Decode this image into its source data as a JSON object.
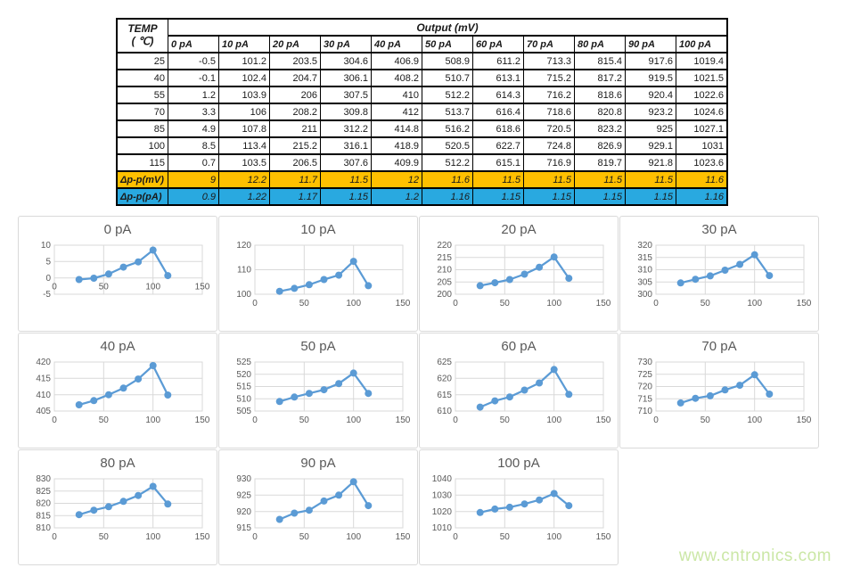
{
  "table": {
    "temp_header_line1": "TEMP",
    "temp_header_line2": "( ℃)",
    "output_header": "Output (mV)",
    "col_headers": [
      "0 pA",
      "10 pA",
      "20 pA",
      "30 pA",
      "40 pA",
      "50 pA",
      "60 pA",
      "70 pA",
      "80 pA",
      "90 pA",
      "100 pA"
    ],
    "rows": [
      {
        "temp": "25",
        "values": [
          "-0.5",
          "101.2",
          "203.5",
          "304.6",
          "406.9",
          "508.9",
          "611.2",
          "713.3",
          "815.4",
          "917.6",
          "1019.4"
        ]
      },
      {
        "temp": "40",
        "values": [
          "-0.1",
          "102.4",
          "204.7",
          "306.1",
          "408.2",
          "510.7",
          "613.1",
          "715.2",
          "817.2",
          "919.5",
          "1021.5"
        ]
      },
      {
        "temp": "55",
        "values": [
          "1.2",
          "103.9",
          "206",
          "307.5",
          "410",
          "512.2",
          "614.3",
          "716.2",
          "818.6",
          "920.4",
          "1022.6"
        ]
      },
      {
        "temp": "70",
        "values": [
          "3.3",
          "106",
          "208.2",
          "309.8",
          "412",
          "513.7",
          "616.4",
          "718.6",
          "820.8",
          "923.2",
          "1024.6"
        ]
      },
      {
        "temp": "85",
        "values": [
          "4.9",
          "107.8",
          "211",
          "312.2",
          "414.8",
          "516.2",
          "618.6",
          "720.5",
          "823.2",
          "925",
          "1027.1"
        ]
      },
      {
        "temp": "100",
        "values": [
          "8.5",
          "113.4",
          "215.2",
          "316.1",
          "418.9",
          "520.5",
          "622.7",
          "724.8",
          "826.9",
          "929.1",
          "1031"
        ]
      },
      {
        "temp": "115",
        "values": [
          "0.7",
          "103.5",
          "206.5",
          "307.6",
          "409.9",
          "512.2",
          "615.1",
          "716.9",
          "819.7",
          "921.8",
          "1023.6"
        ]
      }
    ],
    "delta_mv": {
      "label": "Δp-p(mV)",
      "color": "#FFC000",
      "values": [
        "9",
        "12.2",
        "11.7",
        "11.5",
        "12",
        "11.6",
        "11.5",
        "11.5",
        "11.5",
        "11.5",
        "11.6"
      ]
    },
    "delta_pa": {
      "label": "Δp-p(pA)",
      "color": "#29A9E0",
      "values": [
        "0.9",
        "1.22",
        "1.17",
        "1.15",
        "1.2",
        "1.16",
        "1.15",
        "1.15",
        "1.15",
        "1.15",
        "1.16"
      ]
    }
  },
  "chart_style": {
    "line_color": "#5B9BD5",
    "grid_color": "#D9D9D9",
    "text_color": "#595959"
  },
  "chart_data": [
    {
      "type": "line",
      "title": "0 pA",
      "x": [
        25,
        40,
        55,
        70,
        85,
        100,
        115
      ],
      "y": [
        -0.5,
        -0.1,
        1.2,
        3.3,
        4.9,
        8.5,
        0.7
      ],
      "xlim": [
        0,
        150
      ],
      "xticks": [
        0,
        50,
        100,
        150
      ],
      "ylim": [
        -5,
        10
      ],
      "yticks": [
        -5,
        0,
        5,
        10
      ],
      "grid": true,
      "legend": false
    },
    {
      "type": "line",
      "title": "10 pA",
      "x": [
        25,
        40,
        55,
        70,
        85,
        100,
        115
      ],
      "y": [
        101.2,
        102.4,
        103.9,
        106,
        107.8,
        113.4,
        103.5
      ],
      "xlim": [
        0,
        150
      ],
      "xticks": [
        0,
        50,
        100,
        150
      ],
      "ylim": [
        100,
        120
      ],
      "yticks": [
        100,
        110,
        120
      ],
      "grid": true,
      "legend": false
    },
    {
      "type": "line",
      "title": "20 pA",
      "x": [
        25,
        40,
        55,
        70,
        85,
        100,
        115
      ],
      "y": [
        203.5,
        204.7,
        206,
        208.2,
        211,
        215.2,
        206.5
      ],
      "xlim": [
        0,
        150
      ],
      "xticks": [
        0,
        50,
        100,
        150
      ],
      "ylim": [
        200,
        220
      ],
      "yticks": [
        200,
        205,
        210,
        215,
        220
      ],
      "grid": true,
      "legend": false
    },
    {
      "type": "line",
      "title": "30 pA",
      "x": [
        25,
        40,
        55,
        70,
        85,
        100,
        115
      ],
      "y": [
        304.6,
        306.1,
        307.5,
        309.8,
        312.2,
        316.1,
        307.6
      ],
      "xlim": [
        0,
        150
      ],
      "xticks": [
        0,
        50,
        100,
        150
      ],
      "ylim": [
        300,
        320
      ],
      "yticks": [
        300,
        305,
        310,
        315,
        320
      ],
      "grid": true,
      "legend": false
    },
    {
      "type": "line",
      "title": "40 pA",
      "x": [
        25,
        40,
        55,
        70,
        85,
        100,
        115
      ],
      "y": [
        406.9,
        408.2,
        410,
        412,
        414.8,
        418.9,
        409.9
      ],
      "xlim": [
        0,
        150
      ],
      "xticks": [
        0,
        50,
        100,
        150
      ],
      "ylim": [
        405,
        420
      ],
      "yticks": [
        405,
        410,
        415,
        420
      ],
      "grid": true,
      "legend": false
    },
    {
      "type": "line",
      "title": "50 pA",
      "x": [
        25,
        40,
        55,
        70,
        85,
        100,
        115
      ],
      "y": [
        508.9,
        510.7,
        512.2,
        513.7,
        516.2,
        520.5,
        512.2
      ],
      "xlim": [
        0,
        150
      ],
      "xticks": [
        0,
        50,
        100,
        150
      ],
      "ylim": [
        505,
        525
      ],
      "yticks": [
        505,
        510,
        515,
        520,
        525
      ],
      "grid": true,
      "legend": false
    },
    {
      "type": "line",
      "title": "60 pA",
      "x": [
        25,
        40,
        55,
        70,
        85,
        100,
        115
      ],
      "y": [
        611.2,
        613.1,
        614.3,
        616.4,
        618.6,
        622.7,
        615.1
      ],
      "xlim": [
        0,
        150
      ],
      "xticks": [
        0,
        50,
        100,
        150
      ],
      "ylim": [
        610,
        625
      ],
      "yticks": [
        610,
        615,
        620,
        625
      ],
      "grid": true,
      "legend": false
    },
    {
      "type": "line",
      "title": "70 pA",
      "x": [
        25,
        40,
        55,
        70,
        85,
        100,
        115
      ],
      "y": [
        713.3,
        715.2,
        716.2,
        718.6,
        720.5,
        724.8,
        716.9
      ],
      "xlim": [
        0,
        150
      ],
      "xticks": [
        0,
        50,
        100,
        150
      ],
      "ylim": [
        710,
        730
      ],
      "yticks": [
        710,
        715,
        720,
        725,
        730
      ],
      "grid": true,
      "legend": false
    },
    {
      "type": "line",
      "title": "80 pA",
      "x": [
        25,
        40,
        55,
        70,
        85,
        100,
        115
      ],
      "y": [
        815.4,
        817.2,
        818.6,
        820.8,
        823.2,
        826.9,
        819.7
      ],
      "xlim": [
        0,
        150
      ],
      "xticks": [
        0,
        50,
        100,
        150
      ],
      "ylim": [
        810,
        830
      ],
      "yticks": [
        810,
        815,
        820,
        825,
        830
      ],
      "grid": true,
      "legend": false
    },
    {
      "type": "line",
      "title": "90 pA",
      "x": [
        25,
        40,
        55,
        70,
        85,
        100,
        115
      ],
      "y": [
        917.6,
        919.5,
        920.4,
        923.2,
        925,
        929.1,
        921.8
      ],
      "xlim": [
        0,
        150
      ],
      "xticks": [
        0,
        50,
        100,
        150
      ],
      "ylim": [
        915,
        930
      ],
      "yticks": [
        915,
        920,
        925,
        930
      ],
      "grid": true,
      "legend": false
    },
    {
      "type": "line",
      "title": "100 pA",
      "x": [
        25,
        40,
        55,
        70,
        85,
        100,
        115
      ],
      "y": [
        1019.4,
        1021.5,
        1022.6,
        1024.6,
        1027.1,
        1031,
        1023.6
      ],
      "xlim": [
        0,
        150
      ],
      "xticks": [
        0,
        50,
        100,
        150
      ],
      "ylim": [
        1010,
        1040
      ],
      "yticks": [
        1010,
        1020,
        1030,
        1040
      ],
      "grid": true,
      "legend": false
    }
  ],
  "watermark": "www.cntronics.com"
}
